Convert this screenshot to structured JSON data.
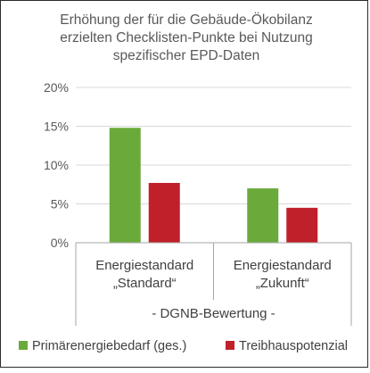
{
  "chart_data": {
    "type": "bar",
    "title": [
      "Erhöhung der für die Gebäude-Ökobilanz",
      "erzielten Checklisten-Punkte bei Nutzung",
      "spezifischer EPD-Daten"
    ],
    "categories": [
      [
        "Energiestandard",
        "„Standard“"
      ],
      [
        "Energiestandard",
        "„Zukunft“"
      ]
    ],
    "group_label": "- DGNB-Bewertung -",
    "ylim": [
      0,
      0.2
    ],
    "yticks": [
      0,
      0.05,
      0.1,
      0.15,
      0.2
    ],
    "ytick_labels": [
      "0%",
      "5%",
      "10%",
      "15%",
      "20%"
    ],
    "grid": true,
    "legend_position": "bottom",
    "series": [
      {
        "name": "Primärenergiebedarf (ges.)",
        "color": "#6aaa3a",
        "values": [
          0.148,
          0.07
        ]
      },
      {
        "name": "Treibhauspotenzial",
        "color": "#c0202a",
        "values": [
          0.077,
          0.045
        ]
      }
    ]
  }
}
